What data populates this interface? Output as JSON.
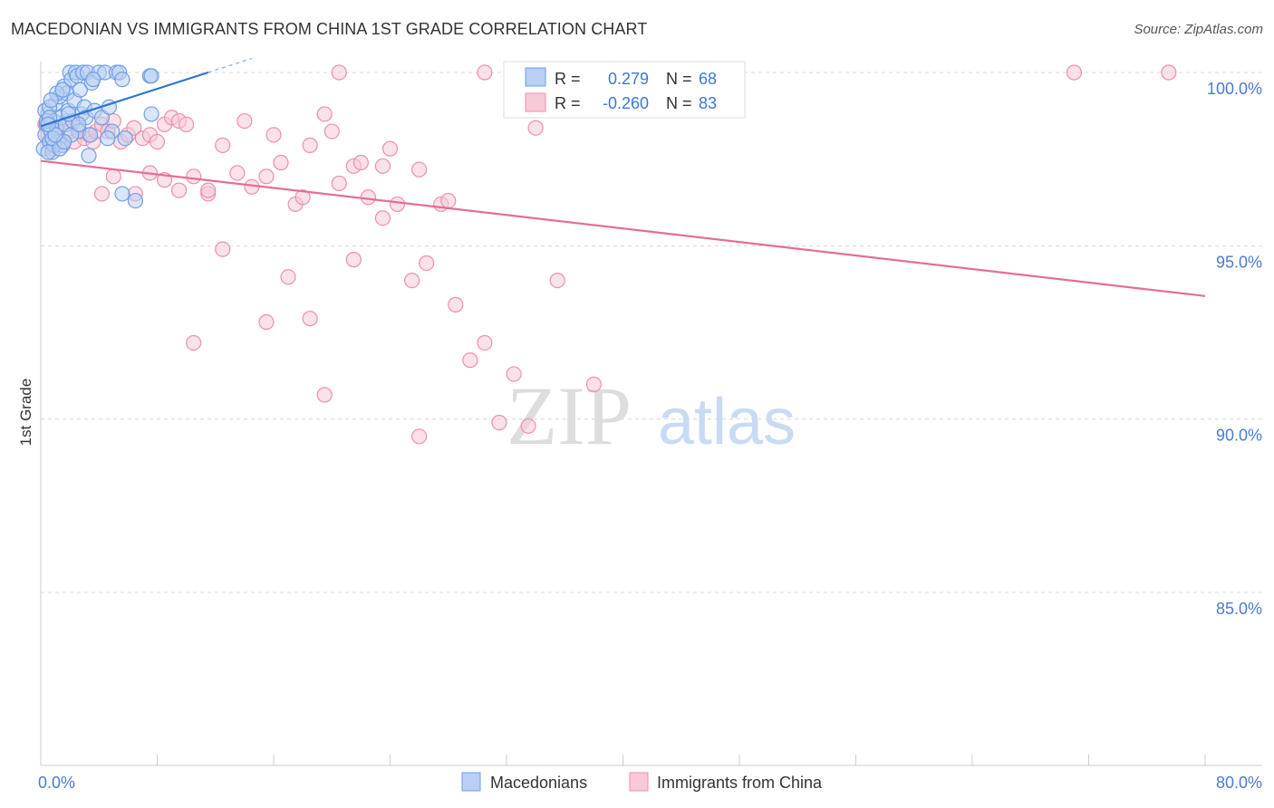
{
  "title": "MACEDONIAN VS IMMIGRANTS FROM CHINA 1ST GRADE CORRELATION CHART",
  "source": "Source: ZipAtlas.com",
  "watermark": {
    "zip": "ZIP",
    "atlas": "atlas"
  },
  "colors": {
    "blue": "#6f9ee6",
    "blue_fill": "#b9cff3",
    "blue_line": "#2f74d0",
    "pink": "#ee8fad",
    "pink_fill": "#f8c9d7",
    "pink_line": "#e56d97",
    "tick_text": "#4a7bd0",
    "grid": "#d8d8d8"
  },
  "legend": {
    "r_label": "R =",
    "n_label": "N =",
    "series": [
      {
        "name": "Macedonians",
        "r": "0.279",
        "n": "68"
      },
      {
        "name": "Immigrants from China",
        "r": "-0.260",
        "n": "83"
      }
    ]
  },
  "chart_data": {
    "type": "scatter",
    "title": "MACEDONIAN VS IMMIGRANTS FROM CHINA 1ST GRADE CORRELATION CHART",
    "xlabel": "",
    "ylabel": "1st Grade",
    "xlim": [
      0,
      80
    ],
    "ylim": [
      80.5,
      100.5
    ],
    "x_tick_labels": [
      {
        "value": 0,
        "label": "0.0%"
      },
      {
        "value": 80,
        "label": "80.0%"
      }
    ],
    "y_ticks": [
      {
        "value": 100,
        "label": "100.0%"
      },
      {
        "value": 95,
        "label": "95.0%"
      },
      {
        "value": 90,
        "label": "90.0%"
      },
      {
        "value": 85,
        "label": "85.0%"
      }
    ],
    "series": [
      {
        "name": "Macedonians",
        "color": "#6f9ee6",
        "trend": {
          "x": [
            0,
            11.5
          ],
          "y": [
            98.45,
            100.0
          ]
        },
        "points": [
          [
            0.2,
            97.8
          ],
          [
            0.3,
            98.2
          ],
          [
            0.4,
            98.5
          ],
          [
            0.5,
            98.8
          ],
          [
            0.6,
            98.0
          ],
          [
            0.7,
            98.3
          ],
          [
            0.8,
            97.7
          ],
          [
            0.9,
            98.6
          ],
          [
            1.0,
            99.1
          ],
          [
            1.1,
            98.4
          ],
          [
            1.2,
            98.0
          ],
          [
            1.3,
            99.3
          ],
          [
            1.4,
            98.7
          ],
          [
            1.5,
            97.9
          ],
          [
            1.6,
            99.6
          ],
          [
            1.7,
            98.5
          ],
          [
            1.8,
            99.4
          ],
          [
            1.9,
            98.9
          ],
          [
            2.0,
            100.0
          ],
          [
            2.1,
            99.8
          ],
          [
            2.2,
            98.6
          ],
          [
            2.3,
            99.2
          ],
          [
            2.4,
            100.0
          ],
          [
            2.5,
            99.9
          ],
          [
            2.6,
            98.3
          ],
          [
            2.7,
            99.5
          ],
          [
            2.8,
            98.8
          ],
          [
            2.9,
            100.0
          ],
          [
            3.0,
            99.0
          ],
          [
            3.1,
            98.7
          ],
          [
            3.2,
            100.0
          ],
          [
            3.3,
            97.6
          ],
          [
            3.5,
            99.7
          ],
          [
            3.7,
            98.9
          ],
          [
            4.0,
            100.0
          ],
          [
            4.2,
            98.7
          ],
          [
            4.4,
            100.0
          ],
          [
            4.7,
            99.0
          ],
          [
            4.9,
            98.3
          ],
          [
            5.2,
            100.0
          ],
          [
            5.4,
            100.0
          ],
          [
            5.6,
            99.8
          ],
          [
            3.6,
            99.8
          ],
          [
            1.9,
            98.8
          ],
          [
            0.9,
            97.9
          ],
          [
            2.1,
            98.2
          ],
          [
            0.3,
            98.9
          ],
          [
            0.5,
            97.7
          ],
          [
            1.1,
            99.4
          ],
          [
            1.5,
            99.5
          ],
          [
            0.8,
            98.1
          ],
          [
            1.3,
            97.8
          ],
          [
            0.6,
            99.0
          ],
          [
            0.4,
            98.6
          ],
          [
            1.6,
            98.0
          ],
          [
            2.6,
            98.5
          ],
          [
            3.4,
            98.2
          ],
          [
            4.6,
            98.1
          ],
          [
            5.8,
            98.1
          ],
          [
            6.5,
            96.3
          ],
          [
            5.6,
            96.5
          ],
          [
            7.5,
            99.9
          ],
          [
            7.6,
            99.9
          ],
          [
            7.6,
            98.8
          ],
          [
            0.6,
            98.7
          ],
          [
            1.0,
            98.2
          ],
          [
            0.7,
            99.2
          ],
          [
            0.5,
            98.5
          ]
        ]
      },
      {
        "name": "Immigrants from China",
        "color": "#ee8fad",
        "trend": {
          "x": [
            0,
            80
          ],
          "y": [
            97.45,
            93.55
          ]
        },
        "points": [
          [
            0.3,
            98.5
          ],
          [
            0.5,
            98.2
          ],
          [
            0.7,
            98.0
          ],
          [
            0.8,
            97.8
          ],
          [
            1.0,
            98.4
          ],
          [
            1.2,
            98.1
          ],
          [
            1.5,
            97.9
          ],
          [
            1.8,
            98.6
          ],
          [
            2.0,
            98.3
          ],
          [
            2.3,
            98.0
          ],
          [
            2.6,
            98.4
          ],
          [
            3.0,
            98.1
          ],
          [
            3.3,
            98.2
          ],
          [
            3.6,
            98.0
          ],
          [
            3.8,
            98.3
          ],
          [
            4.2,
            98.5
          ],
          [
            4.6,
            98.3
          ],
          [
            5.0,
            98.6
          ],
          [
            5.5,
            98.0
          ],
          [
            6.0,
            98.2
          ],
          [
            6.4,
            98.4
          ],
          [
            7.0,
            98.1
          ],
          [
            7.5,
            98.2
          ],
          [
            8.0,
            98.0
          ],
          [
            8.5,
            98.5
          ],
          [
            9.0,
            98.7
          ],
          [
            9.5,
            98.6
          ],
          [
            10.0,
            98.5
          ],
          [
            4.2,
            96.5
          ],
          [
            5.0,
            97.0
          ],
          [
            6.5,
            96.5
          ],
          [
            7.5,
            97.1
          ],
          [
            8.5,
            96.9
          ],
          [
            9.5,
            96.6
          ],
          [
            10.5,
            97.0
          ],
          [
            11.5,
            96.5
          ],
          [
            12.5,
            97.9
          ],
          [
            13.5,
            97.1
          ],
          [
            14.5,
            96.7
          ],
          [
            15.5,
            97.0
          ],
          [
            16.5,
            97.4
          ],
          [
            17.5,
            96.2
          ],
          [
            18.5,
            97.9
          ],
          [
            19.5,
            98.8
          ],
          [
            20.5,
            96.8
          ],
          [
            21.5,
            97.3
          ],
          [
            22.5,
            96.4
          ],
          [
            23.5,
            97.3
          ],
          [
            24.5,
            96.2
          ],
          [
            25.5,
            94.0
          ],
          [
            26.5,
            94.5
          ],
          [
            27.5,
            96.2
          ],
          [
            28.5,
            93.3
          ],
          [
            29.5,
            91.7
          ],
          [
            30.5,
            92.2
          ],
          [
            31.5,
            89.9
          ],
          [
            32.5,
            91.3
          ],
          [
            33.5,
            89.8
          ],
          [
            35.5,
            94.0
          ],
          [
            38.0,
            91.0
          ],
          [
            10.5,
            92.2
          ],
          [
            12.5,
            94.9
          ],
          [
            15.5,
            92.8
          ],
          [
            17.0,
            94.1
          ],
          [
            18.5,
            92.9
          ],
          [
            19.5,
            90.7
          ],
          [
            21.5,
            94.6
          ],
          [
            23.5,
            95.8
          ],
          [
            26.0,
            89.5
          ],
          [
            30.5,
            100.0
          ],
          [
            11.5,
            96.6
          ],
          [
            14.0,
            98.6
          ],
          [
            16.0,
            98.2
          ],
          [
            18.0,
            96.4
          ],
          [
            20.0,
            98.3
          ],
          [
            22.0,
            97.4
          ],
          [
            24.0,
            97.8
          ],
          [
            26.0,
            97.2
          ],
          [
            28.0,
            96.3
          ],
          [
            34.0,
            98.4
          ],
          [
            71.0,
            100.0
          ],
          [
            77.5,
            100.0
          ],
          [
            20.5,
            100.0
          ]
        ]
      }
    ]
  }
}
